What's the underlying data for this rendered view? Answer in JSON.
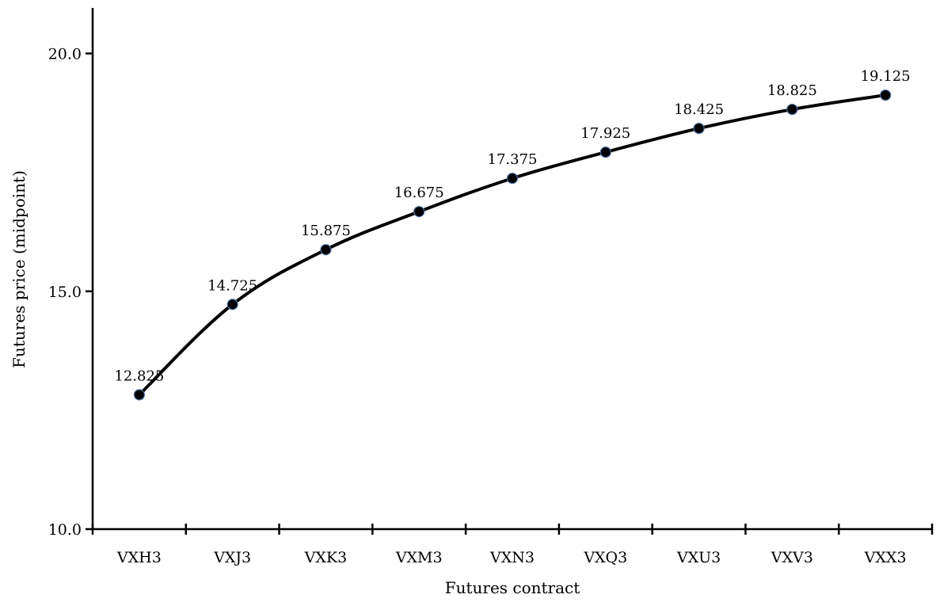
{
  "chart_data": {
    "type": "line",
    "title": "",
    "xlabel": "Futures contract",
    "ylabel": "Futures price (midpoint)",
    "categories": [
      "VXH3",
      "VXJ3",
      "VXK3",
      "VXM3",
      "VXN3",
      "VXQ3",
      "VXU3",
      "VXV3",
      "VXX3"
    ],
    "series": [
      {
        "values": [
          12.825,
          14.725,
          15.875,
          16.675,
          17.375,
          17.925,
          18.425,
          18.825,
          19.125
        ],
        "data_labels": [
          "12.825",
          "14.725",
          "15.875",
          "16.675",
          "17.375",
          "17.925",
          "18.425",
          "18.825",
          "19.125"
        ]
      }
    ],
    "ylim": [
      10,
      21
    ],
    "yticks": [
      10,
      15,
      20
    ],
    "ytick_labels": [
      "10.0",
      "15.0",
      "20.0"
    ],
    "grid": false,
    "legend": "none",
    "line_color": "#000000",
    "marker_color": "#000000",
    "marker_edge_color": "#4a6fa5"
  }
}
